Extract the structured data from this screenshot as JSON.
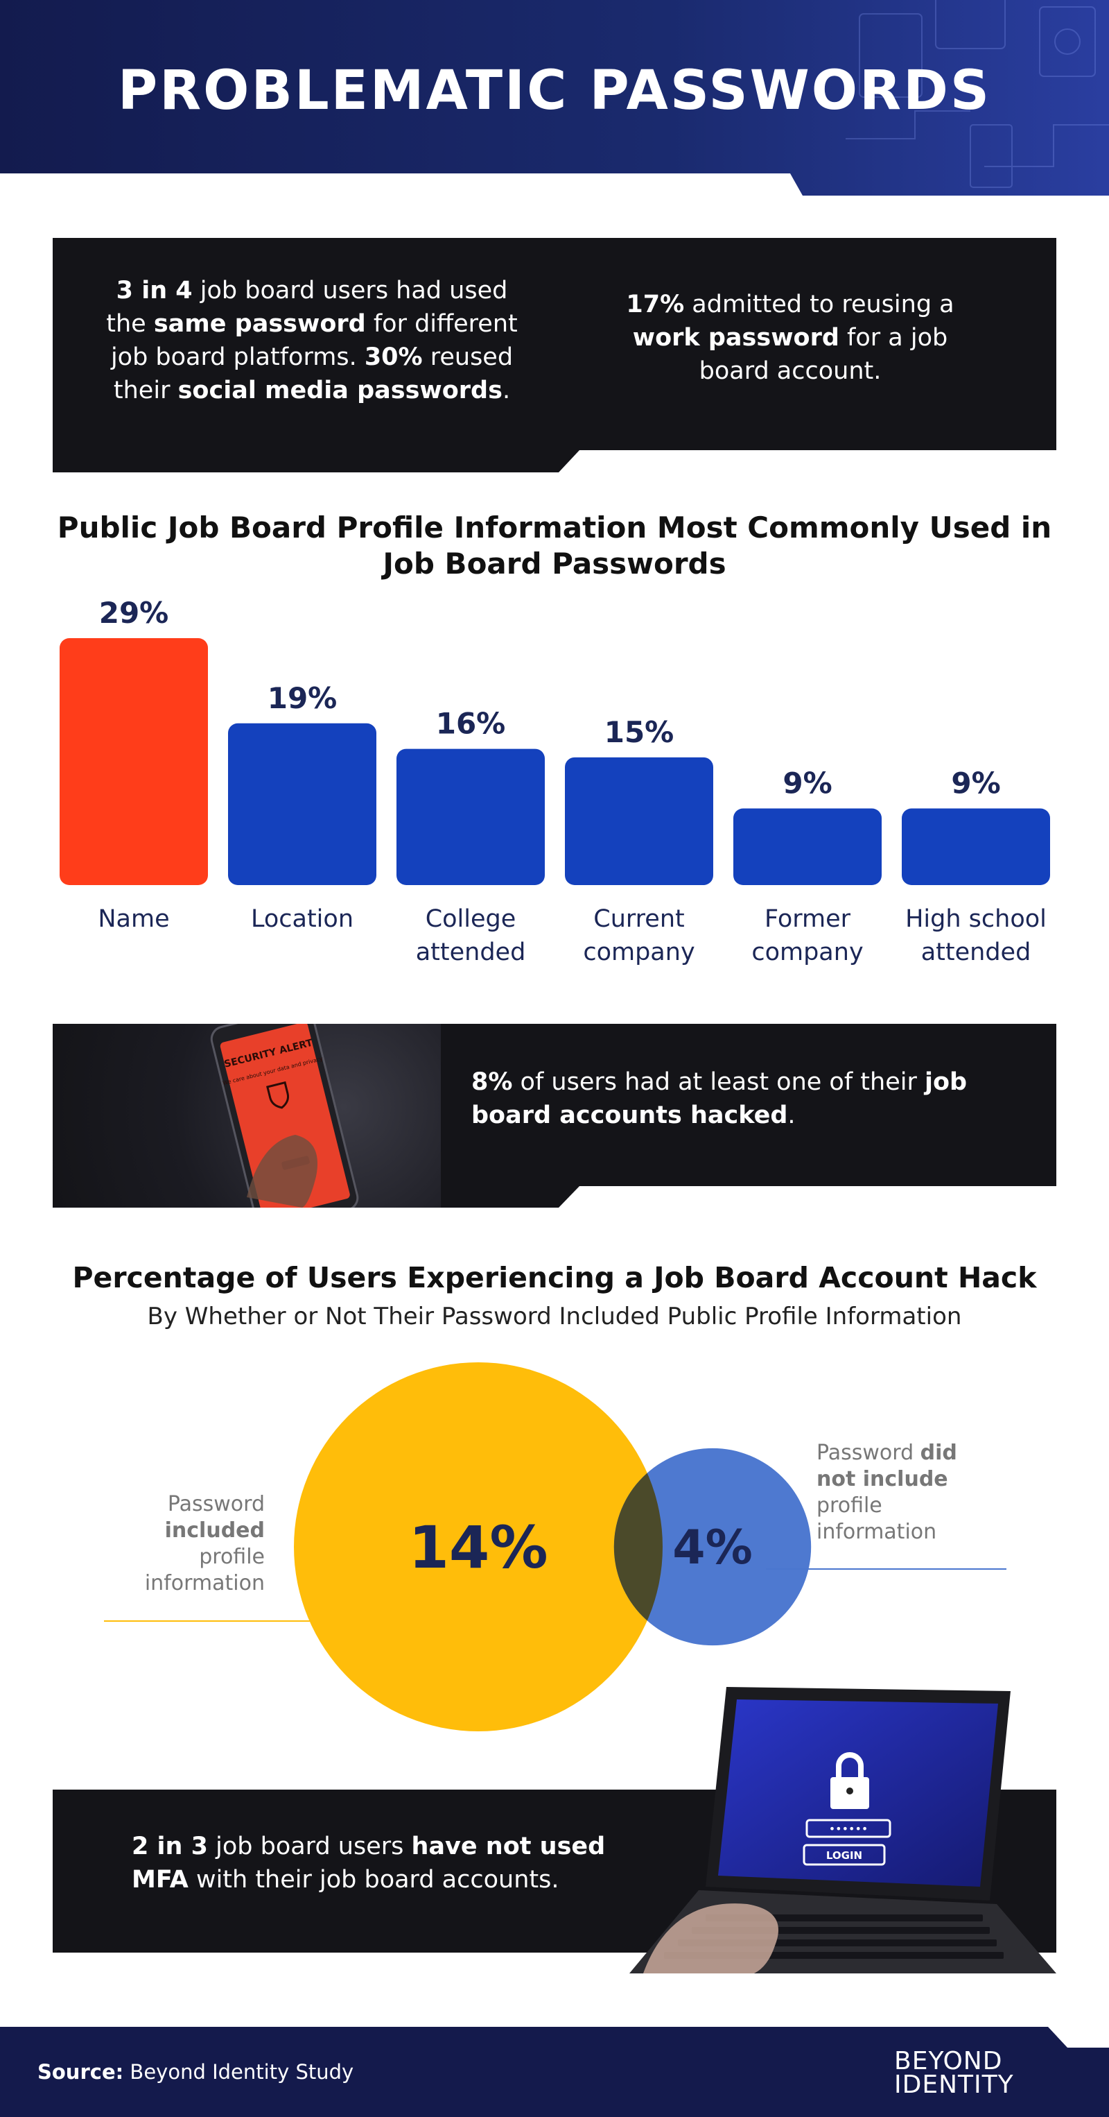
{
  "title": "PROBLEMATIC PASSWORDS",
  "stat_box_1": {
    "left": {
      "p1": "3 in 4",
      "p2": " job board users had used the ",
      "p3": "same password",
      "p4": " for different job board platforms. ",
      "p5": "30%",
      "p6": " reused their ",
      "p7": "social media passwords",
      "p8": "."
    },
    "right": {
      "p1": "17%",
      "p2": " admitted to reusing a ",
      "p3": "work password",
      "p4": " for a job board account."
    }
  },
  "chart_data": [
    {
      "type": "bar",
      "title": "Public Job Board Profile Information Most Commonly Used in Job Board Passwords",
      "categories": [
        "Name",
        "Location",
        "College attended",
        "Current company",
        "Former company",
        "High school attended"
      ],
      "category_lines": [
        [
          "Name"
        ],
        [
          "Location"
        ],
        [
          "College",
          "attended"
        ],
        [
          "Current",
          "company"
        ],
        [
          "Former",
          "company"
        ],
        [
          "High school",
          "attended"
        ]
      ],
      "values": [
        29,
        19,
        16,
        15,
        9,
        9
      ],
      "value_labels": [
        "29%",
        "19%",
        "16%",
        "15%",
        "9%",
        "9%"
      ],
      "colors": [
        "#ff3d1a",
        "#1441bd",
        "#1441bd",
        "#1441bd",
        "#1441bd",
        "#1441bd"
      ],
      "grid": false
    },
    {
      "type": "bubble",
      "title": "Percentage of Users Experiencing a Job Board Account Hack",
      "subtitle": "By Whether or Not Their Password Included Public Profile Information",
      "categories": [
        "Password included profile information",
        "Password did not include profile information"
      ],
      "values": [
        14,
        4
      ],
      "value_labels": [
        "14%",
        "4%"
      ],
      "colors": [
        "#ffbd0a",
        "#4a76cf"
      ]
    }
  ],
  "stat_box_2": {
    "p1": "8%",
    "p2": " of users had at least one of their ",
    "p3": "job board accounts hacked",
    "p4": ".",
    "phone": {
      "alert_title": "SECURITY ALERT",
      "alert_body": "We care about your data and privacy"
    }
  },
  "labels": {
    "included": {
      "p1": "Password ",
      "p2": "included",
      "p3": " profile information"
    },
    "not_included": {
      "p1": "Password ",
      "p2": "did not include",
      "p3": " profile information"
    }
  },
  "stat_box_3": {
    "p1": "2 in 3",
    "p2": " job board users ",
    "p3": "have not used MFA",
    "p4": " with their job board accounts.",
    "laptop": {
      "password_mask": "••••••",
      "login_label": "LOGIN"
    }
  },
  "footer": {
    "source_label": "Source:",
    "source_text": " Beyond Identity Study",
    "logo_line1": "BEYOND",
    "logo_line2": "IDENTITY"
  },
  "colors": {
    "header_navy": "#131b4e",
    "dark_box": "#141418",
    "bar_highlight": "#ff3d1a",
    "bar_primary": "#1441bd",
    "label_navy": "#1b2656",
    "bubble_yellow": "#ffbd0a",
    "bubble_blue": "#4a76cf"
  }
}
